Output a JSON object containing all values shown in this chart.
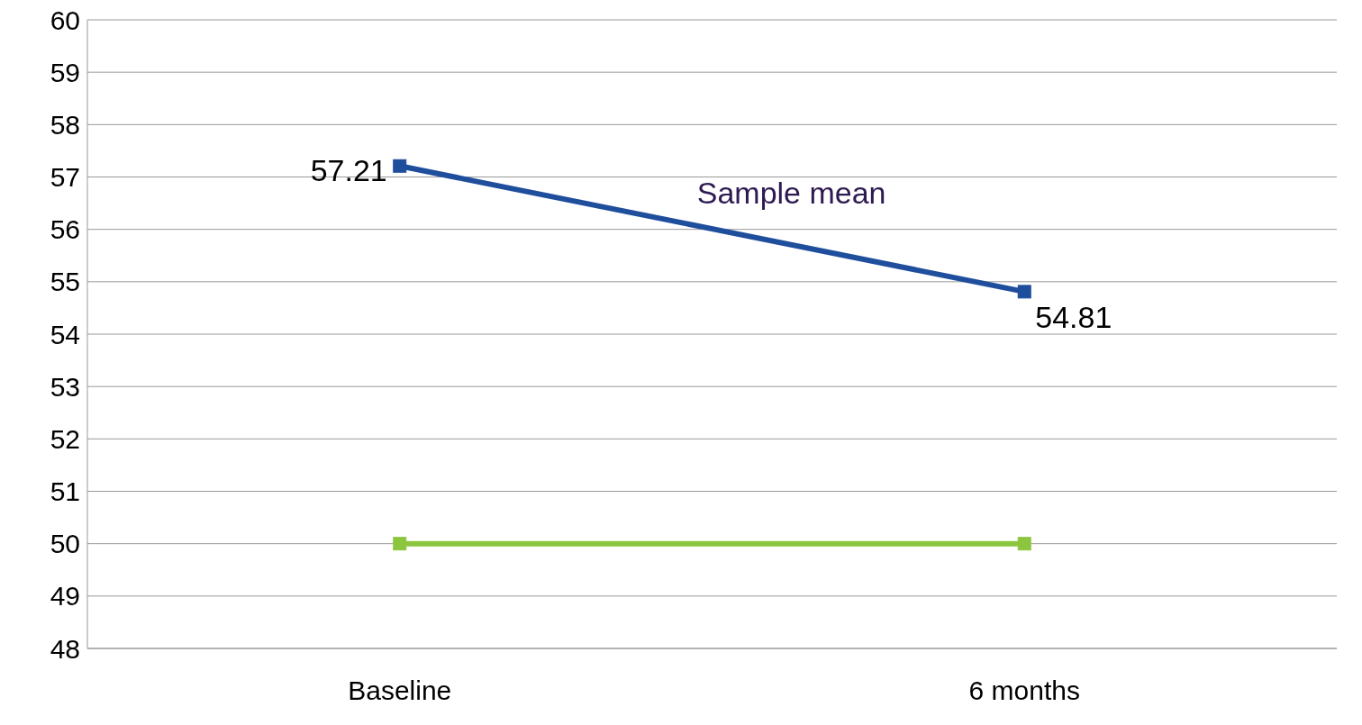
{
  "chart_data": {
    "type": "line",
    "categories": [
      "Baseline",
      "6 months"
    ],
    "series": [
      {
        "name": "Sample mean",
        "color": "#1f4e9c",
        "values": [
          57.21,
          54.81
        ],
        "value_labels": [
          "57.21",
          "54.81"
        ]
      },
      {
        "color": "#8cc63f",
        "values": [
          50,
          50
        ]
      }
    ],
    "ylim": [
      48,
      60
    ],
    "yticks": [
      48,
      49,
      50,
      51,
      52,
      53,
      54,
      55,
      56,
      57,
      58,
      59,
      60
    ],
    "grid": "y",
    "marker": "square",
    "line_style": "solid",
    "legend": false
  }
}
